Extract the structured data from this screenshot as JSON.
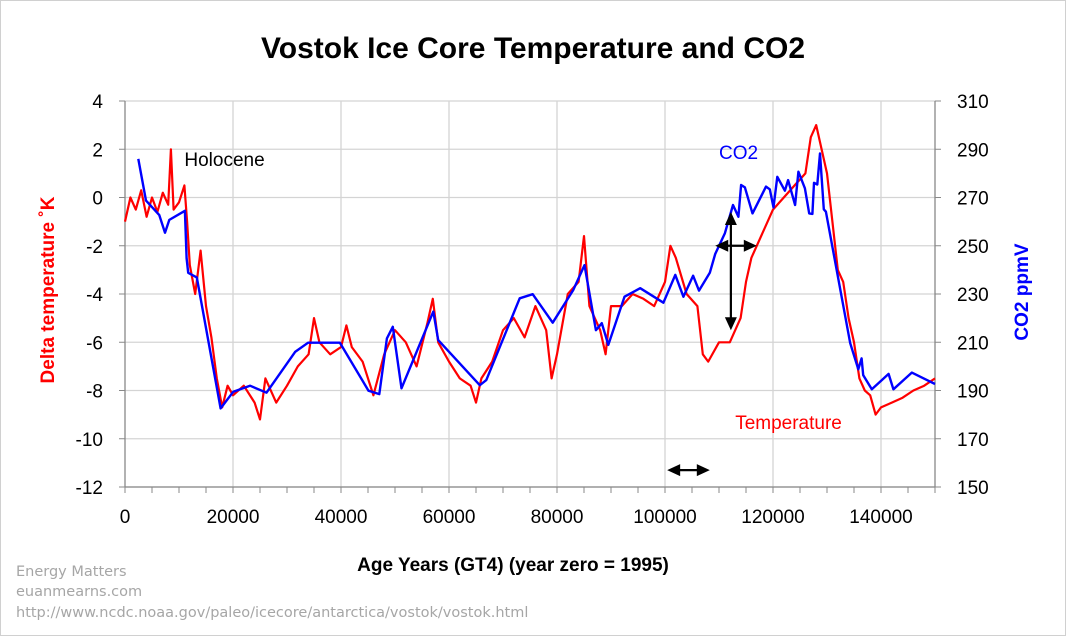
{
  "chart_data": {
    "type": "line",
    "title": "Vostok Ice Core Temperature and CO2",
    "xlabel": "Age Years (GT4) (year zero = 1995)",
    "ylabel_left": "Delta temperature ˚K",
    "ylabel_right": "CO2 ppmV",
    "xlim": [
      0,
      150000
    ],
    "ylim_left": [
      -12,
      4
    ],
    "ylim_right": [
      150,
      310
    ],
    "x_ticks": [
      "0",
      "20000",
      "40000",
      "60000",
      "80000",
      "100000",
      "120000",
      "140000"
    ],
    "x_tick_values": [
      0,
      20000,
      40000,
      60000,
      80000,
      100000,
      120000,
      140000
    ],
    "y_left_ticks": [
      "4",
      "2",
      "0",
      "-2",
      "-4",
      "-6",
      "-8",
      "-10",
      "-12"
    ],
    "y_right_ticks": [
      "310",
      "290",
      "270",
      "250",
      "230",
      "210",
      "190",
      "170",
      "150"
    ],
    "grid": true,
    "colors": {
      "temperature": "#ff0000",
      "co2": "#0000ff",
      "arrows": "#000000"
    },
    "series": [
      {
        "name": "Temperature",
        "axis": "left",
        "color": "#ff0000",
        "x": [
          0,
          1000,
          2000,
          3000,
          4000,
          5000,
          6000,
          7000,
          8000,
          8500,
          9000,
          10000,
          11000,
          11500,
          12000,
          13000,
          14000,
          15000,
          16000,
          17000,
          18000,
          19000,
          20000,
          22000,
          24000,
          25000,
          26000,
          28000,
          30000,
          32000,
          34000,
          35000,
          36000,
          38000,
          40000,
          41000,
          42000,
          44000,
          46000,
          48000,
          50000,
          52000,
          54000,
          56000,
          57000,
          58000,
          60000,
          62000,
          64000,
          65000,
          66000,
          68000,
          70000,
          72000,
          74000,
          76000,
          78000,
          79000,
          80000,
          82000,
          84000,
          85000,
          86000,
          88000,
          89000,
          90000,
          92000,
          94000,
          96000,
          98000,
          100000,
          101000,
          102000,
          104000,
          106000,
          107000,
          108000,
          110000,
          112000,
          114000,
          115000,
          116000,
          118000,
          120000,
          122000,
          124000,
          126000,
          127000,
          128000,
          129000,
          130000,
          131000,
          132000,
          133000,
          134000,
          135000,
          136000,
          137000,
          138000,
          139000,
          140000,
          142000,
          144000,
          146000,
          148000,
          150000
        ],
        "y": [
          -1,
          0,
          -0.5,
          0.3,
          -0.8,
          0,
          -0.6,
          0.2,
          -0.3,
          2.0,
          -0.5,
          -0.2,
          0.5,
          -1,
          -2.8,
          -4,
          -2.2,
          -4.5,
          -5.8,
          -7.5,
          -8.7,
          -7.8,
          -8.2,
          -7.8,
          -8.5,
          -9.2,
          -7.5,
          -8.5,
          -7.8,
          -7,
          -6.5,
          -5.0,
          -6,
          -6.5,
          -6.2,
          -5.3,
          -6.2,
          -6.8,
          -8.2,
          -6.5,
          -5.5,
          -6,
          -7,
          -5.2,
          -4.2,
          -6,
          -6.8,
          -7.5,
          -7.8,
          -8.5,
          -7.5,
          -6.8,
          -5.5,
          -5,
          -5.8,
          -4.5,
          -5.5,
          -7.5,
          -6.5,
          -4,
          -3.5,
          -1.6,
          -4.5,
          -5.5,
          -6.5,
          -4.5,
          -4.5,
          -4,
          -4.2,
          -4.5,
          -3.5,
          -2,
          -2.5,
          -4,
          -4.5,
          -6.5,
          -6.8,
          -6,
          -6,
          -5,
          -3.5,
          -2.5,
          -1.5,
          -0.5,
          0,
          0.5,
          1,
          2.5,
          3,
          2,
          1,
          -1,
          -3,
          -3.5,
          -5,
          -6,
          -7.5,
          -8,
          -8.2,
          -9,
          -8.7,
          -8.5,
          -8.3,
          -8,
          -7.8,
          -7.5
        ]
      },
      {
        "name": "CO2",
        "axis": "right",
        "color": "#0000ff",
        "x": [
          2470,
          3890,
          6350,
          7400,
          8200,
          11100,
          11400,
          11700,
          13300,
          17700,
          20060,
          23150,
          26200,
          31500,
          33900,
          39800,
          45100,
          47100,
          48500,
          49600,
          51200,
          57100,
          58000,
          65700,
          66900,
          73100,
          75500,
          79200,
          83000,
          85100,
          87200,
          88300,
          89500,
          92500,
          95400,
          99700,
          101900,
          103400,
          105200,
          106300,
          108300,
          109300,
          111100,
          112600,
          113600,
          114100,
          114800,
          116200,
          118700,
          119400,
          120100,
          120800,
          122200,
          122800,
          124100,
          124700,
          125900,
          126700,
          127300,
          127600,
          128200,
          128700,
          129400,
          129800,
          134300,
          135800,
          136400,
          136700,
          138300,
          141400,
          142300,
          145700,
          150000
        ],
        "y": [
          286,
          268.7,
          262.7,
          255.4,
          260.7,
          264.5,
          244.8,
          238.8,
          236.9,
          182.6,
          189.5,
          192,
          189.1,
          206,
          209.8,
          209.8,
          189.9,
          188.5,
          211.6,
          216.4,
          190.9,
          222.7,
          210.9,
          192.2,
          194.3,
          228.2,
          229.9,
          218.1,
          231.6,
          242,
          215,
          217.9,
          208.9,
          228.9,
          232.4,
          226.4,
          237.9,
          228.9,
          237.6,
          231.4,
          238.8,
          246.6,
          255.2,
          266.9,
          262,
          275.2,
          274.2,
          263.4,
          274.5,
          273.4,
          265.9,
          278.6,
          272.8,
          277.2,
          266.9,
          280.7,
          273.8,
          263.4,
          263.2,
          276.1,
          275.4,
          288.3,
          265.1,
          264.1,
          209.6,
          198.8,
          203.3,
          196.4,
          190.5,
          196.9,
          190.5,
          197.4,
          192.7
        ]
      }
    ],
    "annotations": [
      {
        "text": "Holocene",
        "x": 11000,
        "y": 1.3,
        "color": "#000000"
      },
      {
        "text": "CO2",
        "x": 110000,
        "y": 1.6,
        "color": "#0000ff"
      },
      {
        "text": "Temperature",
        "x": 113000,
        "y": -9.6,
        "color": "#ff0000"
      }
    ],
    "arrows": [
      {
        "type": "double-horizontal",
        "x": [
          100400,
          108300
        ],
        "y": -11.3
      },
      {
        "type": "double-horizontal",
        "x": [
          109300,
          117000
        ],
        "y": -2
      },
      {
        "type": "double-vertical",
        "x": 112200,
        "y": [
          -0.6,
          -5.5
        ]
      }
    ]
  },
  "credits": {
    "line1": "Energy Matters",
    "line2": "euanmearns.com",
    "line3": "http://www.ncdc.noaa.gov/paleo/icecore/antarctica/vostok/vostok.html"
  }
}
